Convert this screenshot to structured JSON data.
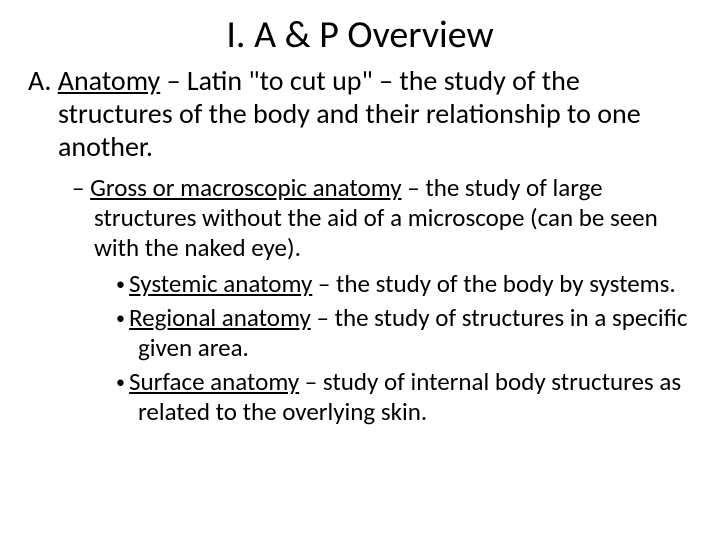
{
  "title": "I.  A & P Overview",
  "item_a": {
    "marker": "A.  ",
    "term": "Anatomy",
    "rest": " – Latin \"to cut up\" – the study of the structures of the body and their relationship to one another."
  },
  "sub_dash": {
    "marker": "– ",
    "term": "Gross or macroscopic anatomy",
    "rest": " – the study of large structures without the aid of a microscope (can be seen with the naked eye)."
  },
  "bullets": [
    {
      "term": "Systemic anatomy",
      "rest": " – the study of the body by systems."
    },
    {
      "term": "Regional anatomy",
      "rest": " – the study of structures in a specific given area."
    },
    {
      "term": "Surface anatomy",
      "rest": " – study of internal body structures as related to the overlying skin."
    }
  ],
  "style": {
    "background": "#ffffff",
    "text_color": "#000000",
    "title_fontsize": 38,
    "body_fontsize": 28,
    "sub_fontsize": 25
  }
}
